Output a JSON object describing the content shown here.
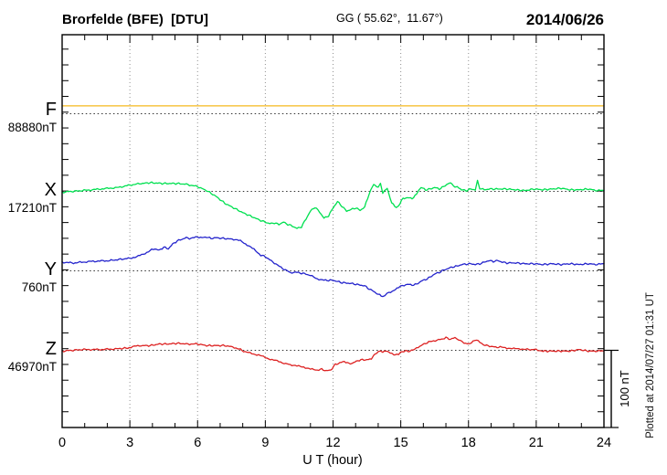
{
  "header": {
    "station": "Brorfelde (BFE)  [DTU]",
    "coords": "GG ( 55.62°,  11.67°)",
    "date": "2014/06/26"
  },
  "footer_note": "Plotted at 2014/07/27 01:31 UT",
  "scale_bar_label": "100 nT",
  "xaxis": {
    "label": "U T (hour)",
    "min": 0,
    "max": 24,
    "ticks": [
      0,
      3,
      6,
      9,
      12,
      15,
      18,
      21,
      24
    ]
  },
  "colors": {
    "grid": "#909090",
    "baseline_dots": "#333333",
    "frame": "#000000"
  },
  "chart_data": {
    "type": "line",
    "title": "Brorfelde (BFE) magnetogram 2014/06/26",
    "x_unit": "UT hour",
    "y_unit": "nT offset from baseline value",
    "scale_nT_per_bar": 100,
    "series": [
      {
        "name": "F",
        "baseline_label": "88880nT",
        "color": "#f5b81e",
        "points": [
          [
            0,
            10
          ],
          [
            3,
            10
          ],
          [
            6,
            10
          ],
          [
            9,
            10
          ],
          [
            12,
            10
          ],
          [
            15,
            10
          ],
          [
            18,
            10
          ],
          [
            21,
            10
          ],
          [
            24,
            10
          ]
        ]
      },
      {
        "name": "X",
        "baseline_label": "17210nT",
        "color": "#00e050",
        "points": [
          [
            0,
            -1
          ],
          [
            0.9,
            1
          ],
          [
            1.7,
            3
          ],
          [
            2.5,
            5
          ],
          [
            3,
            8
          ],
          [
            3.5,
            10
          ],
          [
            3.9,
            11
          ],
          [
            4.5,
            10
          ],
          [
            5.1,
            10
          ],
          [
            5.5,
            9
          ],
          [
            6,
            6
          ],
          [
            6.4,
            1
          ],
          [
            6.8,
            -6
          ],
          [
            7.2,
            -15
          ],
          [
            7.6,
            -21
          ],
          [
            8,
            -27
          ],
          [
            8.4,
            -32
          ],
          [
            8.8,
            -37
          ],
          [
            9.2,
            -41
          ],
          [
            9.4,
            -40
          ],
          [
            9.6,
            -42
          ],
          [
            9.8,
            -39
          ],
          [
            10,
            -42
          ],
          [
            10.2,
            -44
          ],
          [
            10.4,
            -47
          ],
          [
            10.6,
            -45
          ],
          [
            10.8,
            -35
          ],
          [
            11,
            -25
          ],
          [
            11.2,
            -20
          ],
          [
            11.4,
            -26
          ],
          [
            11.6,
            -34
          ],
          [
            11.8,
            -31
          ],
          [
            12,
            -21
          ],
          [
            12.2,
            -13
          ],
          [
            12.4,
            -19
          ],
          [
            12.6,
            -25
          ],
          [
            12.8,
            -23
          ],
          [
            13,
            -21
          ],
          [
            13.2,
            -24
          ],
          [
            13.4,
            -20
          ],
          [
            13.6,
            -3
          ],
          [
            13.8,
            9
          ],
          [
            14,
            5
          ],
          [
            14.1,
            10
          ],
          [
            14.2,
            -2
          ],
          [
            14.4,
            4
          ],
          [
            14.6,
            -15
          ],
          [
            14.8,
            -20
          ],
          [
            14.9,
            -18
          ],
          [
            15.1,
            -9
          ],
          [
            15.3,
            -8
          ],
          [
            15.5,
            -9
          ],
          [
            15.7,
            -4
          ],
          [
            15.8,
            1
          ],
          [
            15.9,
            5
          ],
          [
            16.1,
            2
          ],
          [
            16.3,
            3
          ],
          [
            16.5,
            5
          ],
          [
            16.7,
            3
          ],
          [
            16.9,
            6
          ],
          [
            17.1,
            10
          ],
          [
            17.2,
            11
          ],
          [
            17.4,
            5
          ],
          [
            17.5,
            6
          ],
          [
            17.7,
            2
          ],
          [
            17.9,
            1
          ],
          [
            18.1,
            3
          ],
          [
            18.3,
            2
          ],
          [
            18.4,
            14
          ],
          [
            18.5,
            4
          ],
          [
            18.7,
            2
          ],
          [
            18.9,
            3
          ],
          [
            19.3,
            3
          ],
          [
            19.7,
            3
          ],
          [
            20.1,
            2
          ],
          [
            20.5,
            1
          ],
          [
            20.9,
            3
          ],
          [
            21.3,
            2
          ],
          [
            21.7,
            3
          ],
          [
            22.1,
            4
          ],
          [
            22.5,
            2
          ],
          [
            22.9,
            2
          ],
          [
            23.3,
            3
          ],
          [
            23.7,
            1
          ],
          [
            24,
            1
          ]
        ]
      },
      {
        "name": "Y",
        "baseline_label": "760nT",
        "color": "#2424cc",
        "points": [
          [
            0,
            11
          ],
          [
            0.5,
            10
          ],
          [
            1.3,
            12
          ],
          [
            2.1,
            13
          ],
          [
            3,
            16
          ],
          [
            3.3,
            18
          ],
          [
            3.6,
            21
          ],
          [
            3.9,
            26
          ],
          [
            4.1,
            28
          ],
          [
            4.3,
            26
          ],
          [
            4.5,
            30
          ],
          [
            4.7,
            28
          ],
          [
            4.9,
            34
          ],
          [
            5.1,
            38
          ],
          [
            5.3,
            40
          ],
          [
            5.5,
            42
          ],
          [
            5.7,
            41
          ],
          [
            6,
            43
          ],
          [
            6.2,
            42
          ],
          [
            6.4,
            43
          ],
          [
            6.6,
            41
          ],
          [
            6.8,
            42
          ],
          [
            7.2,
            41
          ],
          [
            7.6,
            40
          ],
          [
            7.9,
            38
          ],
          [
            8.2,
            33
          ],
          [
            8.5,
            27
          ],
          [
            8.8,
            20
          ],
          [
            9,
            18
          ],
          [
            9.2,
            14
          ],
          [
            9.4,
            10
          ],
          [
            9.7,
            4
          ],
          [
            9.9,
            1
          ],
          [
            10.1,
            -2
          ],
          [
            10.4,
            -2
          ],
          [
            10.6,
            -3
          ],
          [
            10.8,
            -4
          ],
          [
            11,
            -6
          ],
          [
            11.3,
            -10
          ],
          [
            11.6,
            -12
          ],
          [
            12,
            -12
          ],
          [
            12.4,
            -15
          ],
          [
            12.8,
            -16
          ],
          [
            13.2,
            -18
          ],
          [
            13.4,
            -19
          ],
          [
            13.6,
            -23
          ],
          [
            13.8,
            -26
          ],
          [
            14,
            -30
          ],
          [
            14.2,
            -32
          ],
          [
            14.3,
            -31
          ],
          [
            14.4,
            -28
          ],
          [
            14.7,
            -25
          ],
          [
            14.9,
            -21
          ],
          [
            15,
            -19
          ],
          [
            15.3,
            -17
          ],
          [
            15.5,
            -18
          ],
          [
            15.7,
            -17
          ],
          [
            15.9,
            -13
          ],
          [
            16.1,
            -11
          ],
          [
            16.3,
            -8
          ],
          [
            16.5,
            -4
          ],
          [
            16.7,
            -2
          ],
          [
            16.9,
            1
          ],
          [
            17.1,
            3
          ],
          [
            17.3,
            5
          ],
          [
            17.5,
            6
          ],
          [
            17.7,
            8
          ],
          [
            18.1,
            9
          ],
          [
            18.3,
            8
          ],
          [
            18.5,
            9
          ],
          [
            18.7,
            11
          ],
          [
            18.9,
            13
          ],
          [
            19.1,
            12
          ],
          [
            19.3,
            13
          ],
          [
            19.5,
            11
          ],
          [
            19.7,
            10
          ],
          [
            20.1,
            10
          ],
          [
            20.5,
            9
          ],
          [
            20.9,
            9
          ],
          [
            21.3,
            8
          ],
          [
            21.7,
            9
          ],
          [
            22.1,
            8
          ],
          [
            22.5,
            9
          ],
          [
            22.9,
            8
          ],
          [
            23.3,
            9
          ],
          [
            23.7,
            8
          ],
          [
            24,
            9
          ]
        ]
      },
      {
        "name": "Z",
        "baseline_label": "46970nT",
        "color": "#dd2222",
        "points": [
          [
            0,
            -1
          ],
          [
            0.9,
            1
          ],
          [
            1.7,
            1
          ],
          [
            2.5,
            2
          ],
          [
            2.9,
            3
          ],
          [
            3.2,
            5
          ],
          [
            3.5,
            6
          ],
          [
            3.9,
            6
          ],
          [
            4.3,
            8
          ],
          [
            4.7,
            8
          ],
          [
            5.1,
            9
          ],
          [
            5.5,
            8
          ],
          [
            6,
            8
          ],
          [
            6.4,
            6
          ],
          [
            6.8,
            6
          ],
          [
            7.2,
            6
          ],
          [
            7.4,
            5
          ],
          [
            7.7,
            3
          ],
          [
            7.9,
            1
          ],
          [
            8.1,
            -2
          ],
          [
            8.4,
            -4
          ],
          [
            8.7,
            -6
          ],
          [
            9,
            -9
          ],
          [
            9.3,
            -12
          ],
          [
            9.6,
            -14
          ],
          [
            9.9,
            -17
          ],
          [
            10.1,
            -18
          ],
          [
            10.4,
            -20
          ],
          [
            10.7,
            -21
          ],
          [
            11,
            -24
          ],
          [
            11.3,
            -25
          ],
          [
            11.5,
            -24
          ],
          [
            11.7,
            -26
          ],
          [
            11.9,
            -25
          ],
          [
            12.1,
            -18
          ],
          [
            12.3,
            -16
          ],
          [
            12.5,
            -14
          ],
          [
            12.7,
            -17
          ],
          [
            12.9,
            -16
          ],
          [
            13.1,
            -13
          ],
          [
            13.3,
            -12
          ],
          [
            13.5,
            -12
          ],
          [
            13.7,
            -11
          ],
          [
            13.8,
            -6
          ],
          [
            14,
            -2
          ],
          [
            14.1,
            -1
          ],
          [
            14.2,
            -2
          ],
          [
            14.4,
            -1
          ],
          [
            14.6,
            -4
          ],
          [
            14.7,
            -6
          ],
          [
            14.9,
            -5
          ],
          [
            15,
            -2
          ],
          [
            15.2,
            -1
          ],
          [
            15.4,
            -1
          ],
          [
            15.6,
            1
          ],
          [
            15.7,
            3
          ],
          [
            15.9,
            6
          ],
          [
            16.1,
            9
          ],
          [
            16.3,
            11
          ],
          [
            16.6,
            13
          ],
          [
            16.8,
            14
          ],
          [
            17,
            16
          ],
          [
            17.2,
            14
          ],
          [
            17.4,
            16
          ],
          [
            17.5,
            14
          ],
          [
            17.7,
            12
          ],
          [
            17.8,
            9
          ],
          [
            18,
            8
          ],
          [
            18.2,
            11
          ],
          [
            18.3,
            13
          ],
          [
            18.5,
            11
          ],
          [
            18.6,
            8
          ],
          [
            18.8,
            6
          ],
          [
            19,
            5
          ],
          [
            19.2,
            4
          ],
          [
            19.4,
            4
          ],
          [
            19.7,
            3
          ],
          [
            20,
            2
          ],
          [
            20.3,
            2
          ],
          [
            20.6,
            1
          ],
          [
            21,
            1
          ],
          [
            21.3,
            -1
          ],
          [
            21.7,
            -1
          ],
          [
            22.1,
            -1
          ],
          [
            22.5,
            -1
          ],
          [
            22.9,
            1
          ],
          [
            23.3,
            -1
          ],
          [
            23.7,
            -1
          ],
          [
            24,
            -1
          ]
        ]
      }
    ]
  }
}
